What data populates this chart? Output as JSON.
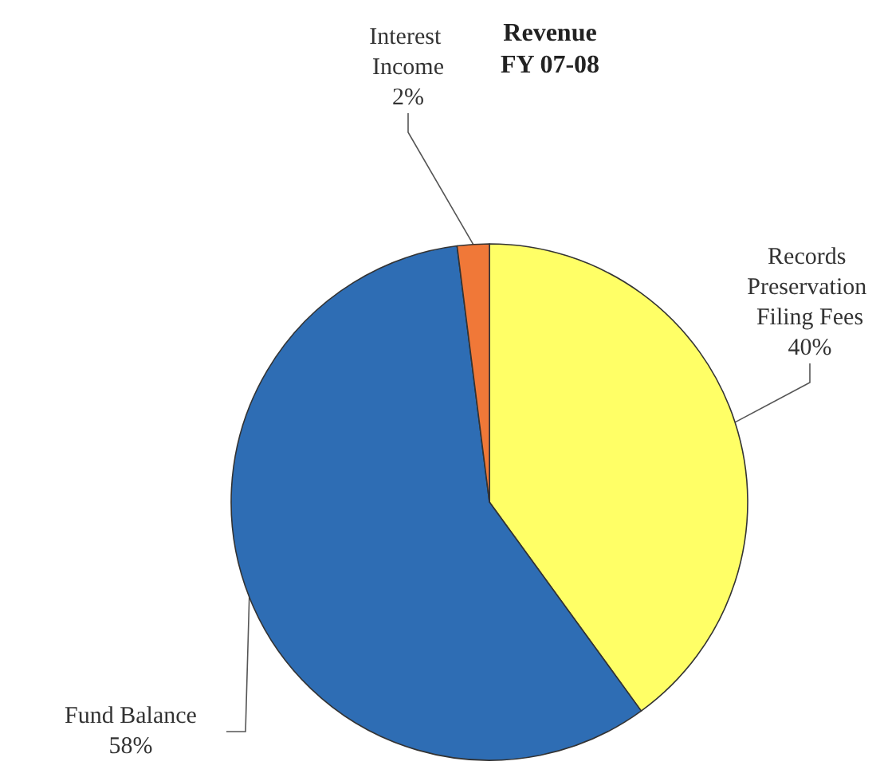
{
  "chart_data": {
    "type": "pie",
    "title": "Revenue\nFY 07-08",
    "categories": [
      "Records Preservation Filing Fees",
      "Fund Balance",
      "Interest Income"
    ],
    "values": [
      40,
      58,
      2
    ],
    "colors": [
      "#ffff66",
      "#2e6db4",
      "#f07838"
    ],
    "value_labels": [
      "40%",
      "58%",
      "2%"
    ],
    "legend": false
  }
}
